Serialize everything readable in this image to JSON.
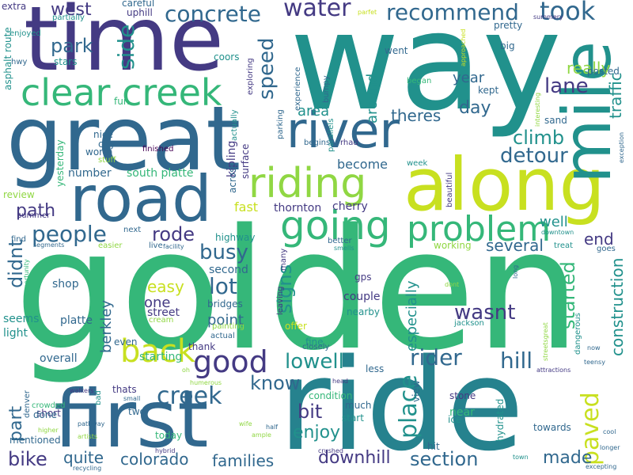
{
  "palette": {
    "c1": "#443a83",
    "c2": "#31688e",
    "c3": "#21918c",
    "c4": "#35b779",
    "c5": "#90d743",
    "c6": "#fde725",
    "c7": "#c8e020",
    "c8": "#440154",
    "c9": "#26828e"
  },
  "words": [
    {
      "text": "golden",
      "color": "c4"
    },
    {
      "text": "way",
      "color": "c3"
    },
    {
      "text": "ride",
      "color": "c9"
    },
    {
      "text": "time",
      "color": "c1"
    },
    {
      "text": "great",
      "color": "c2"
    },
    {
      "text": "along",
      "color": "c7"
    },
    {
      "text": "road",
      "color": "c2"
    },
    {
      "text": "first",
      "color": "c2"
    },
    {
      "text": "mile",
      "color": "c3"
    },
    {
      "text": "river",
      "color": "c2"
    },
    {
      "text": "clear creek",
      "color": "c4"
    },
    {
      "text": "riding",
      "color": "c5"
    },
    {
      "text": "going",
      "color": "c4"
    },
    {
      "text": "problem",
      "color": "c4"
    },
    {
      "text": "concrete",
      "color": "c2"
    },
    {
      "text": "water",
      "color": "c1"
    },
    {
      "text": "recommend",
      "color": "c2"
    },
    {
      "text": "took",
      "color": "c2"
    },
    {
      "text": "west",
      "color": "c1"
    },
    {
      "text": "park",
      "color": "c2"
    },
    {
      "text": "side",
      "color": "c3"
    },
    {
      "text": "speed",
      "color": "c2"
    },
    {
      "text": "really",
      "color": "c5"
    },
    {
      "text": "lane",
      "color": "c1"
    },
    {
      "text": "traffic",
      "color": "c3"
    },
    {
      "text": "year",
      "color": "c2"
    },
    {
      "text": "area",
      "color": "c3"
    },
    {
      "text": "around",
      "color": "c3"
    },
    {
      "text": "theres",
      "color": "c2"
    },
    {
      "text": "day",
      "color": "c2"
    },
    {
      "text": "climb",
      "color": "c3"
    },
    {
      "text": "detour",
      "color": "c2"
    },
    {
      "text": "paved",
      "color": "c7"
    },
    {
      "text": "construction",
      "color": "c3"
    },
    {
      "text": "started",
      "color": "c4"
    },
    {
      "text": "back",
      "color": "c7"
    },
    {
      "text": "good",
      "color": "c1"
    },
    {
      "text": "people",
      "color": "c2"
    },
    {
      "text": "path",
      "color": "c1"
    },
    {
      "text": "rode",
      "color": "c1"
    },
    {
      "text": "busy",
      "color": "c2"
    },
    {
      "text": "lot",
      "color": "c2"
    },
    {
      "text": "signs",
      "color": "c3"
    },
    {
      "text": "didnt",
      "color": "c2"
    },
    {
      "text": "easy",
      "color": "c7"
    },
    {
      "text": "one",
      "color": "c1"
    },
    {
      "text": "street",
      "color": "c1"
    },
    {
      "text": "point",
      "color": "c2"
    },
    {
      "text": "berkley",
      "color": "c2"
    },
    {
      "text": "creek",
      "color": "c2"
    },
    {
      "text": "lowell",
      "color": "c3"
    },
    {
      "text": "know",
      "color": "c2"
    },
    {
      "text": "bit",
      "color": "c1"
    },
    {
      "text": "enjoy",
      "color": "c3"
    },
    {
      "text": "rider",
      "color": "c2"
    },
    {
      "text": "hill",
      "color": "c2"
    },
    {
      "text": "place",
      "color": "c3"
    },
    {
      "text": "wasnt",
      "color": "c1"
    },
    {
      "text": "especially",
      "color": "c3"
    },
    {
      "text": "several",
      "color": "c2"
    },
    {
      "text": "well",
      "color": "c3"
    },
    {
      "text": "end",
      "color": "c1"
    },
    {
      "text": "part",
      "color": "c2"
    },
    {
      "text": "bike",
      "color": "c1"
    },
    {
      "text": "quite",
      "color": "c2"
    },
    {
      "text": "colorado",
      "color": "c2"
    },
    {
      "text": "families",
      "color": "c2"
    },
    {
      "text": "downhill",
      "color": "c1"
    },
    {
      "text": "section",
      "color": "c2"
    },
    {
      "text": "made",
      "color": "c2"
    },
    {
      "text": "south platte",
      "color": "c4"
    },
    {
      "text": "number",
      "color": "c2"
    },
    {
      "text": "become",
      "color": "c2"
    },
    {
      "text": "fast",
      "color": "c7"
    },
    {
      "text": "thornton",
      "color": "c1"
    },
    {
      "text": "cherry",
      "color": "c1"
    },
    {
      "text": "overall",
      "color": "c2"
    },
    {
      "text": "seems",
      "color": "c3"
    },
    {
      "text": "light",
      "color": "c3"
    },
    {
      "text": "shop",
      "color": "c2"
    },
    {
      "text": "platte",
      "color": "c2"
    },
    {
      "text": "nice",
      "color": "c2"
    },
    {
      "text": "city",
      "color": "c2"
    },
    {
      "text": "worth",
      "color": "c2"
    },
    {
      "text": "couple",
      "color": "c1"
    },
    {
      "text": "nearby",
      "color": "c3"
    },
    {
      "text": "gps",
      "color": "c1"
    },
    {
      "text": "highway",
      "color": "c3"
    },
    {
      "text": "second",
      "color": "c2"
    },
    {
      "text": "bridges",
      "color": "c2"
    },
    {
      "text": "starting",
      "color": "c4"
    },
    {
      "text": "thank",
      "color": "c1"
    },
    {
      "text": "fine",
      "color": "c3"
    },
    {
      "text": "even",
      "color": "c2"
    },
    {
      "text": "thats",
      "color": "c1"
    },
    {
      "text": "two",
      "color": "c2"
    },
    {
      "text": "short",
      "color": "c1"
    },
    {
      "text": "done",
      "color": "c2"
    },
    {
      "text": "less",
      "color": "c2"
    },
    {
      "text": "much",
      "color": "c2"
    },
    {
      "text": "start",
      "color": "c3"
    },
    {
      "text": "near",
      "color": "c4"
    },
    {
      "text": "ice",
      "color": "c3"
    },
    {
      "text": "today",
      "color": "c4"
    },
    {
      "text": "towards",
      "color": "c2"
    },
    {
      "text": "hydrated",
      "color": "c3"
    },
    {
      "text": "mentioned",
      "color": "c2"
    },
    {
      "text": "view",
      "color": "c2"
    },
    {
      "text": "condition",
      "color": "c4"
    },
    {
      "text": "stone",
      "color": "c1"
    },
    {
      "text": "hit",
      "color": "c2"
    },
    {
      "text": "went",
      "color": "c2"
    },
    {
      "text": "pretty",
      "color": "c2"
    },
    {
      "text": "big",
      "color": "c2"
    },
    {
      "text": "posted",
      "color": "c2"
    },
    {
      "text": "kept",
      "color": "c2"
    },
    {
      "text": "sand",
      "color": "c2"
    },
    {
      "text": "began",
      "color": "c4"
    },
    {
      "text": "stars",
      "color": "c3"
    },
    {
      "text": "coors",
      "color": "c3"
    },
    {
      "text": "fun",
      "color": "c4"
    },
    {
      "text": "careful",
      "color": "c2"
    },
    {
      "text": "uphill",
      "color": "c1"
    },
    {
      "text": "partially",
      "color": "c3"
    },
    {
      "text": "enjoyed",
      "color": "c3"
    },
    {
      "text": "asphalt route",
      "color": "c3"
    },
    {
      "text": "hwy",
      "color": "c2"
    },
    {
      "text": "extra",
      "color": "c1"
    },
    {
      "text": "yesterday",
      "color": "c4"
    },
    {
      "text": "stuff",
      "color": "c5"
    },
    {
      "text": "finished",
      "color": "c8"
    },
    {
      "text": "review",
      "color": "c5"
    },
    {
      "text": "summer",
      "color": "c1"
    },
    {
      "text": "kipling",
      "color": "c1"
    },
    {
      "text": "across",
      "color": "c2"
    },
    {
      "text": "surface",
      "color": "c1"
    },
    {
      "text": "actually",
      "color": "c3"
    },
    {
      "text": "exploring",
      "color": "c1"
    },
    {
      "text": "parking",
      "color": "c2"
    },
    {
      "text": "bumpy",
      "color": "c2"
    },
    {
      "text": "experience",
      "color": "c2"
    },
    {
      "text": "begins",
      "color": "c2"
    },
    {
      "text": "parallels",
      "color": "c3"
    },
    {
      "text": "rhad",
      "color": "c1"
    },
    {
      "text": "week",
      "color": "c3"
    },
    {
      "text": "beautiful",
      "color": "c1"
    },
    {
      "text": "find",
      "color": "c2"
    },
    {
      "text": "segments",
      "color": "c2"
    },
    {
      "text": "opportunity",
      "color": "c4"
    },
    {
      "text": "next",
      "color": "c2"
    },
    {
      "text": "easier",
      "color": "c5"
    },
    {
      "text": "live",
      "color": "c2"
    },
    {
      "text": "facility",
      "color": "c2"
    },
    {
      "text": "smells",
      "color": "c3"
    },
    {
      "text": "better",
      "color": "c2"
    },
    {
      "text": "working",
      "color": "c5"
    },
    {
      "text": "treat",
      "color": "c3"
    },
    {
      "text": "downtown",
      "color": "c3"
    },
    {
      "text": "goes",
      "color": "c2"
    },
    {
      "text": "leaving",
      "color": "c1"
    },
    {
      "text": "many",
      "color": "c1"
    },
    {
      "text": "offer",
      "color": "c7"
    },
    {
      "text": "actual",
      "color": "c2"
    },
    {
      "text": "painting",
      "color": "c5"
    },
    {
      "text": "closely",
      "color": "c2"
    },
    {
      "text": "cream",
      "color": "c5"
    },
    {
      "text": "head",
      "color": "c1"
    },
    {
      "text": "oh",
      "color": "c5"
    },
    {
      "text": "humerous",
      "color": "c5"
    },
    {
      "text": "walkers",
      "color": "c1"
    },
    {
      "text": "small",
      "color": "c2"
    },
    {
      "text": "bad",
      "color": "c3"
    },
    {
      "text": "denver",
      "color": "c2"
    },
    {
      "text": "crowded",
      "color": "c4"
    },
    {
      "text": "higher",
      "color": "c5"
    },
    {
      "text": "pathway",
      "color": "c2"
    },
    {
      "text": "artists",
      "color": "c5"
    },
    {
      "text": "wife",
      "color": "c5"
    },
    {
      "text": "ample",
      "color": "c5"
    },
    {
      "text": "half",
      "color": "c2"
    },
    {
      "text": "hybrid",
      "color": "c1"
    },
    {
      "text": "crushed",
      "color": "c1"
    },
    {
      "text": "recycling",
      "color": "c2"
    },
    {
      "text": "town",
      "color": "c3"
    },
    {
      "text": "excepting",
      "color": "c2"
    },
    {
      "text": "longer",
      "color": "c2"
    },
    {
      "text": "cool",
      "color": "c2"
    },
    {
      "text": "attractions",
      "color": "c1"
    },
    {
      "text": "teensy",
      "color": "c2"
    },
    {
      "text": "now",
      "color": "c2"
    },
    {
      "text": "streetsgreat",
      "color": "c5"
    },
    {
      "text": "dangerous",
      "color": "c3"
    },
    {
      "text": "jackson",
      "color": "c3"
    },
    {
      "text": "dont",
      "color": "c5"
    },
    {
      "text": "long",
      "color": "c2"
    },
    {
      "text": "exception",
      "color": "c2"
    },
    {
      "text": "interesting",
      "color": "c5"
    },
    {
      "text": "summery",
      "color": "c1"
    },
    {
      "text": "approached",
      "color": "c7"
    },
    {
      "text": "parfet",
      "color": "c7"
    }
  ]
}
